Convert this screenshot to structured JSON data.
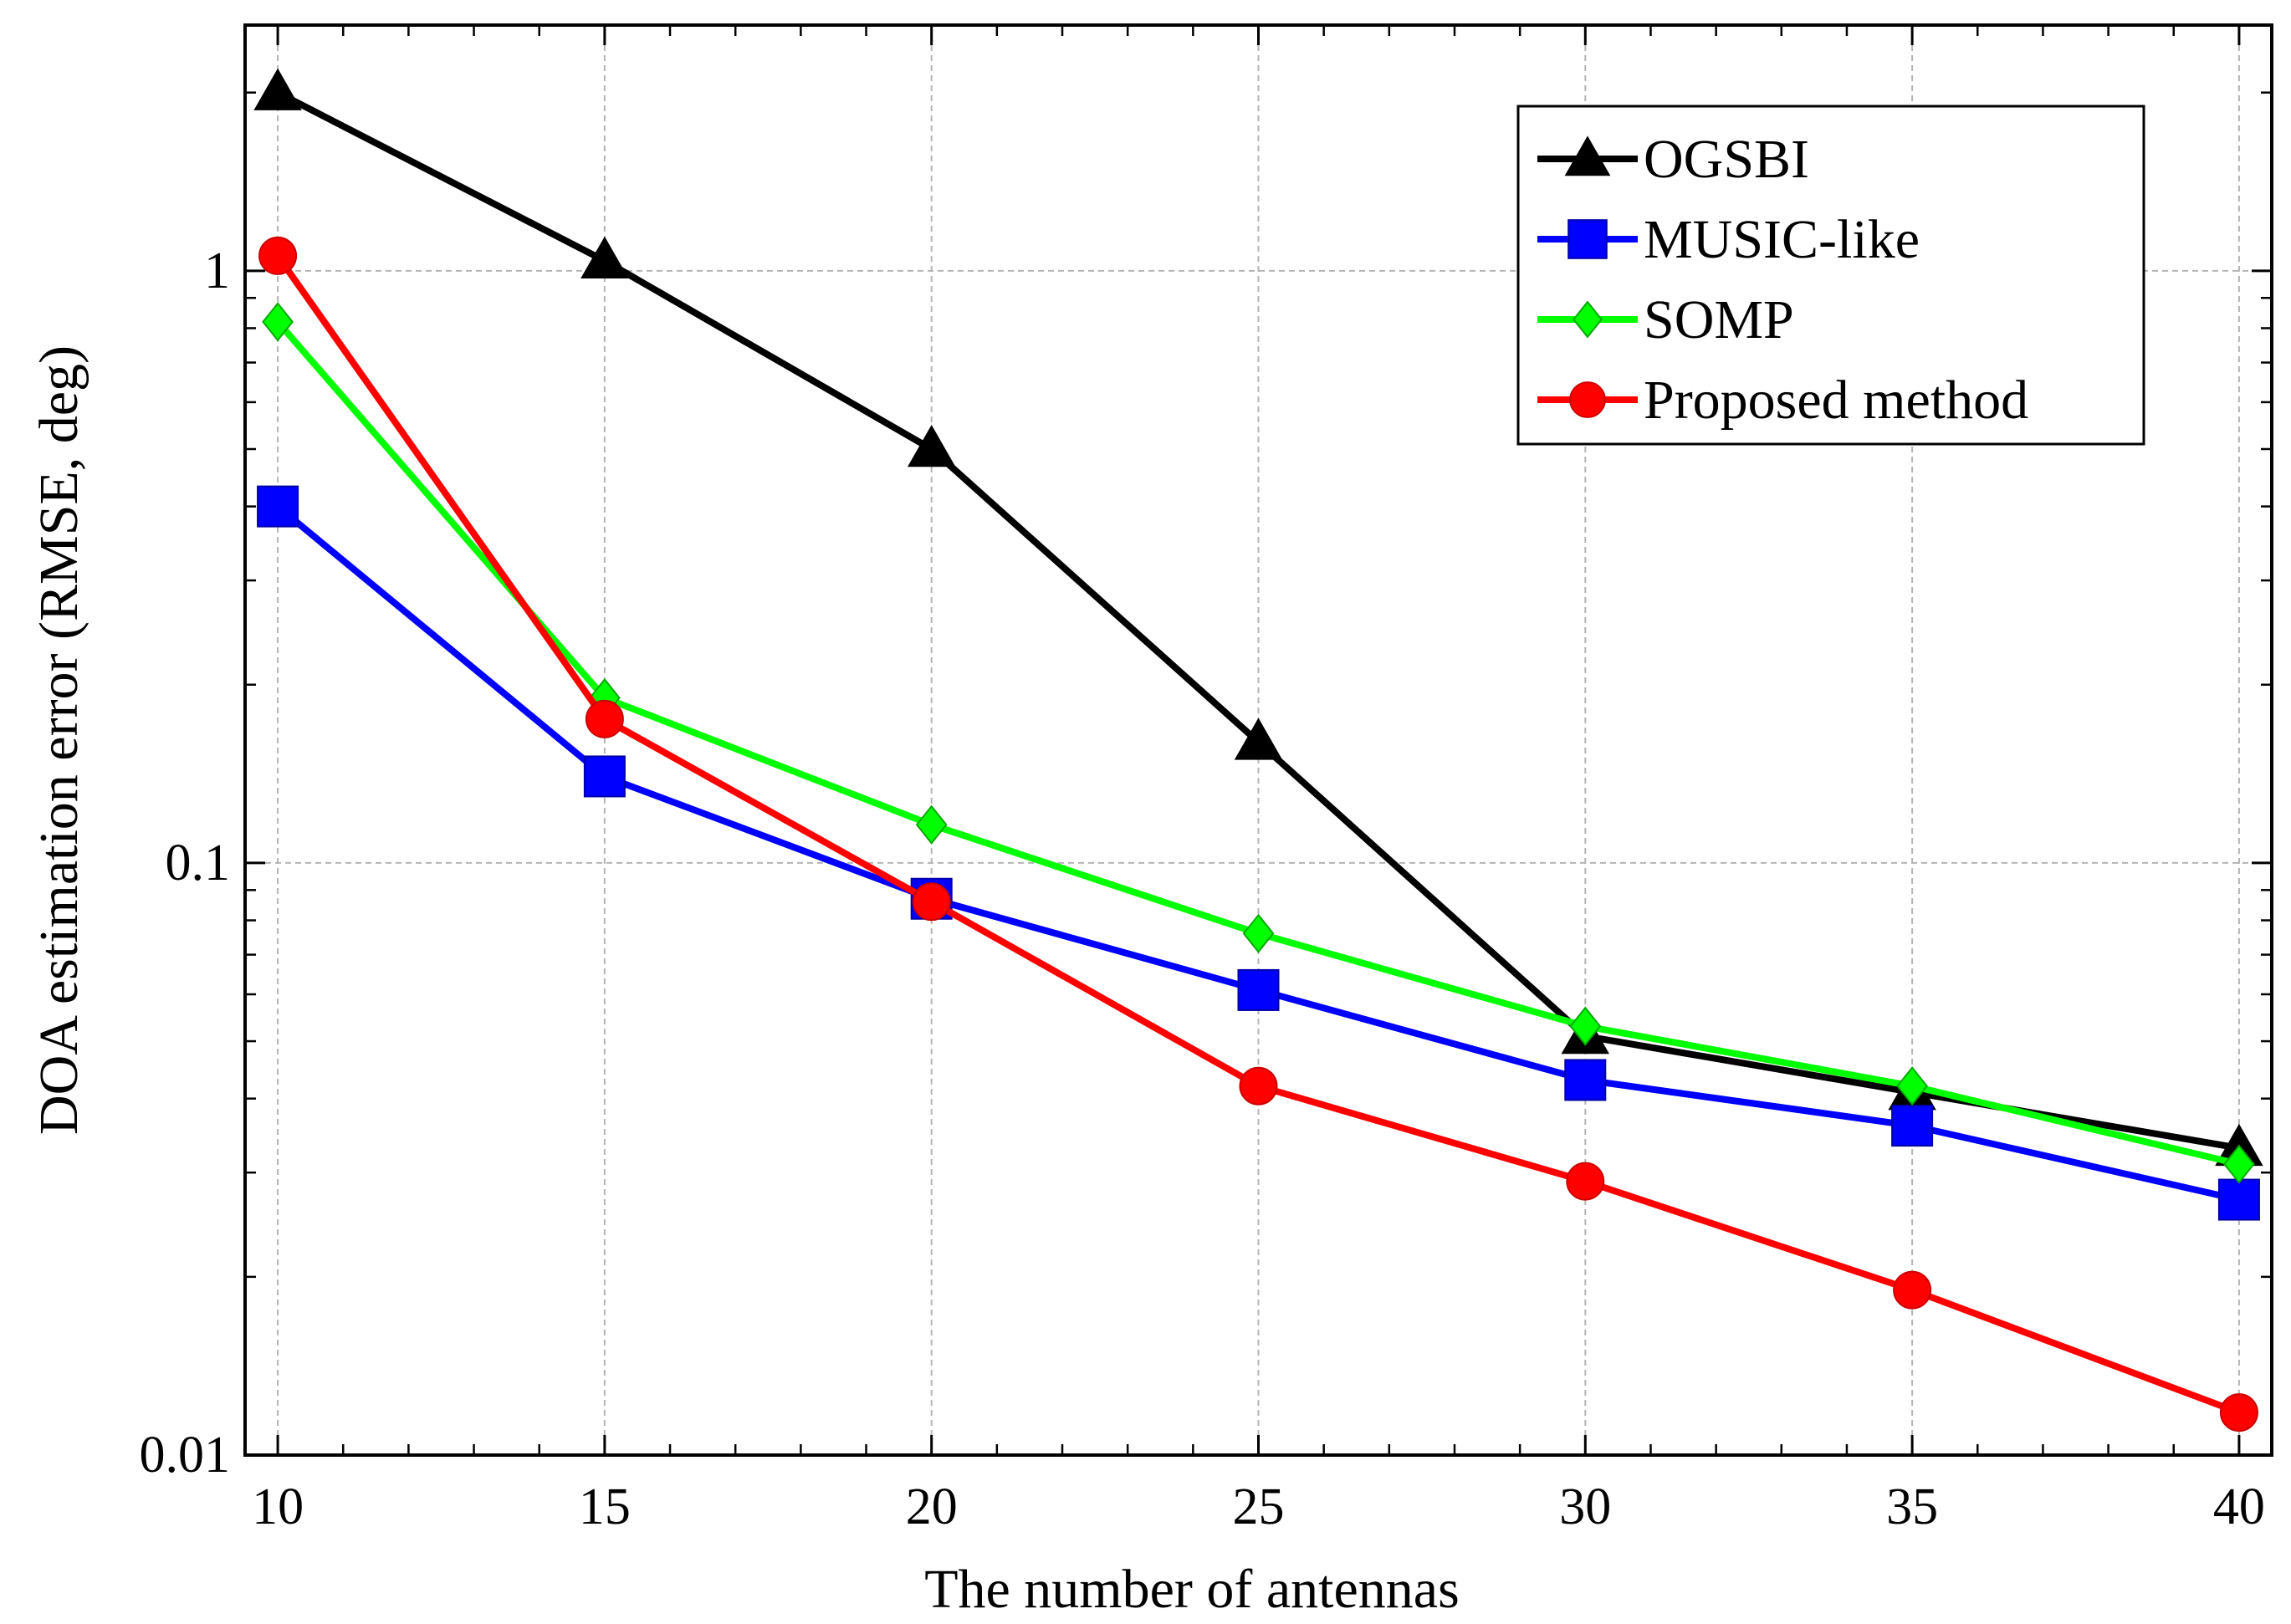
{
  "chart_data": {
    "type": "line",
    "title": "",
    "xlabel": "The number of antennas",
    "ylabel": "DOA estimation error (RMSE, deg)",
    "x": [
      10,
      15,
      20,
      25,
      30,
      35,
      40
    ],
    "xlim": [
      9.5,
      40.5
    ],
    "x_ticks": [
      10,
      15,
      20,
      25,
      30,
      35,
      40
    ],
    "x_tick_labels": [
      "10",
      "15",
      "20",
      "25",
      "30",
      "35",
      "40"
    ],
    "ylim": [
      0.01,
      2.6
    ],
    "y_scale": "log",
    "y_ticks": [
      0.01,
      0.1,
      1
    ],
    "y_tick_labels": [
      "0.01",
      "0.1",
      "1"
    ],
    "grid": true,
    "legend_position": "top-right",
    "series": [
      {
        "name": "OGSBI",
        "color": "#000000",
        "marker": "triangle",
        "values": [
          2.0,
          1.04,
          0.5,
          0.16,
          0.051,
          0.041,
          0.033
        ]
      },
      {
        "name": "MUSIC-like",
        "color": "#0000ff",
        "marker": "square",
        "values": [
          0.4,
          0.14,
          0.087,
          0.061,
          0.043,
          0.036,
          0.027
        ]
      },
      {
        "name": "SOMP",
        "color": "#00ff00",
        "marker": "diamond",
        "values": [
          0.82,
          0.19,
          0.116,
          0.076,
          0.053,
          0.042,
          0.031
        ]
      },
      {
        "name": "Proposed method",
        "color": "#ff0000",
        "marker": "circle",
        "values": [
          1.06,
          0.175,
          0.086,
          0.042,
          0.029,
          0.019,
          0.0118
        ]
      }
    ]
  }
}
